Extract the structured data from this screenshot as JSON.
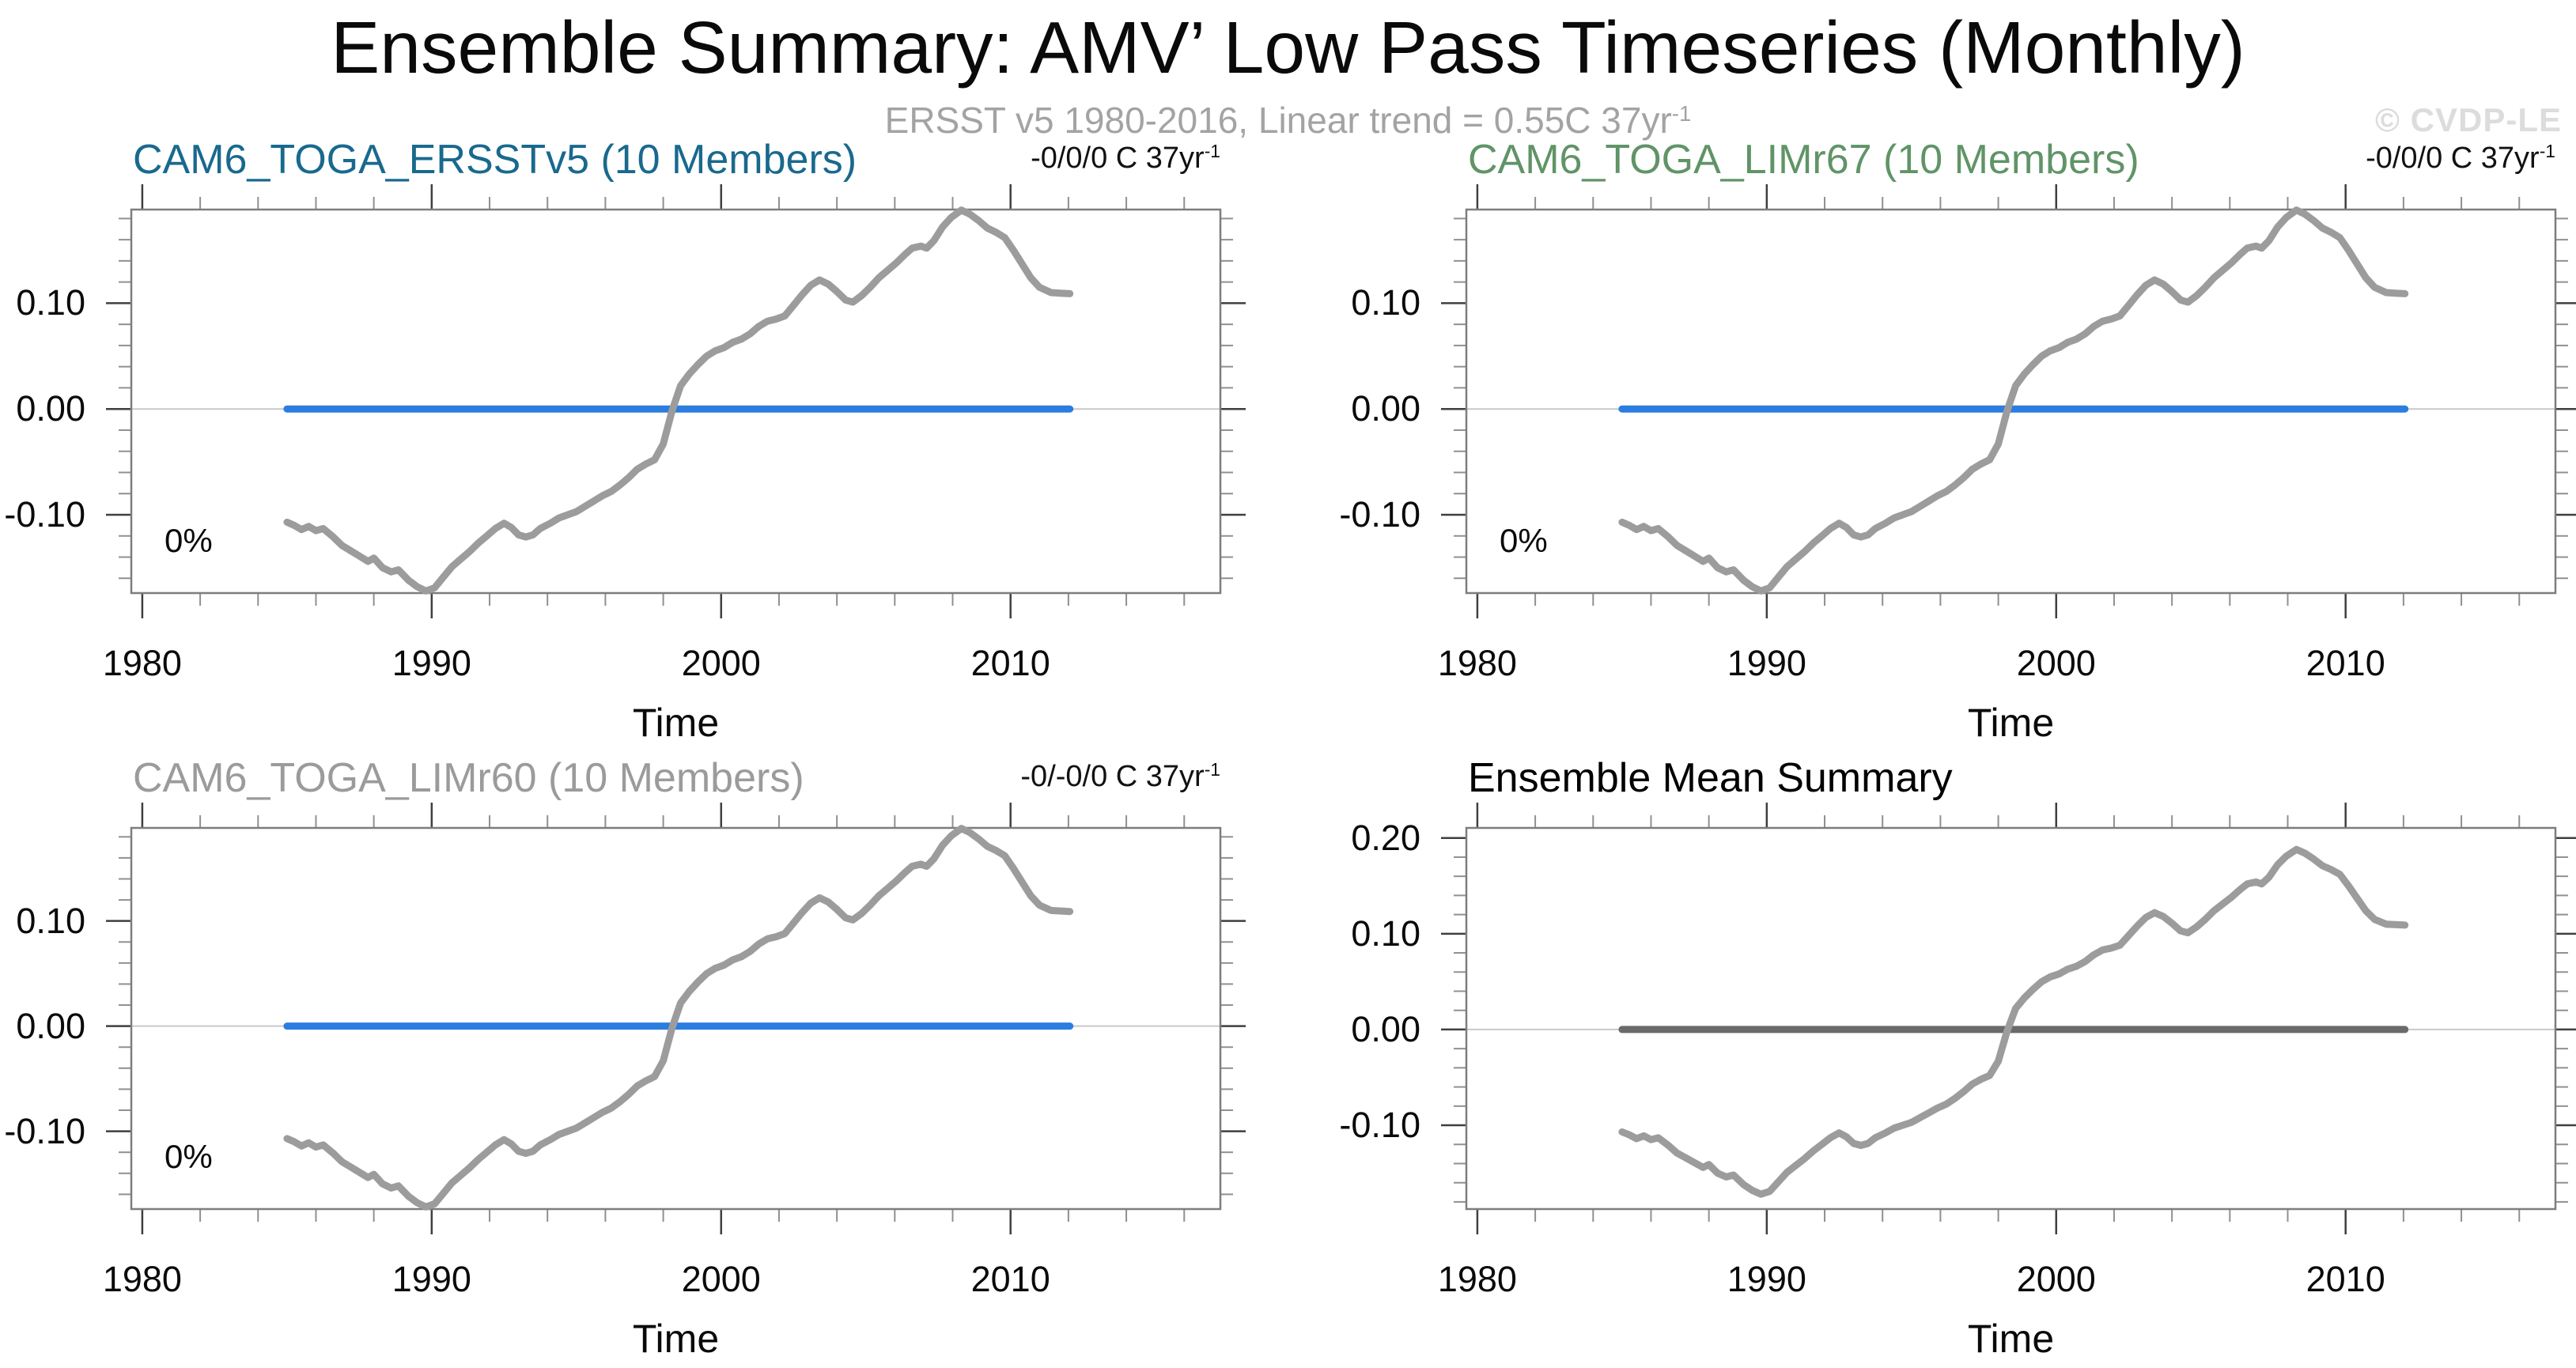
{
  "header": {
    "title": "Ensemble Summary: AMV’ Low Pass Timeseries (Monthly)",
    "subtitle": "ERSST v5 1980-2016, Linear trend = 0.55C 37yr",
    "subtitle_exp": "-1",
    "watermark": "© CVDP-LE"
  },
  "chart_data": {
    "type": "line",
    "grid": "off",
    "x_axis": {
      "label": "Time",
      "range": [
        1979.62,
        2017.25
      ],
      "major_ticks": [
        1980,
        1990,
        2000,
        2010
      ],
      "minor_step_years": 2
    },
    "panels": [
      {
        "title": "CAM6_TOGA_ERSSTv5 (10 Members)",
        "title_color": "#19698e",
        "trend_label": "-0/0/0 C 37yr",
        "trend_exp": "-1",
        "corner_label": "0%",
        "y_tick_labels": [
          "0.10",
          "0.00",
          "-0.10"
        ],
        "y_tick_values": [
          0.1,
          0.0,
          -0.1
        ],
        "y_range": [
          -0.174,
          0.1885
        ],
        "y_minor_step": 0.02,
        "member_line": {
          "color": "#2b7de0",
          "value": 0.0,
          "x_start": 1985.0,
          "x_end": 2012.05
        },
        "series_color": "#9c9c9c"
      },
      {
        "title": "CAM6_TOGA_LIMr67 (10 Members)",
        "title_color": "#609467",
        "trend_label": "-0/0/0 C 37yr",
        "trend_exp": "-1",
        "corner_label": "0%",
        "y_tick_labels": [
          "0.10",
          "0.00",
          "-0.10"
        ],
        "y_tick_values": [
          0.1,
          0.0,
          -0.1
        ],
        "y_range": [
          -0.174,
          0.1885
        ],
        "y_minor_step": 0.02,
        "member_line": {
          "color": "#2b7de0",
          "value": 0.0,
          "x_start": 1985.0,
          "x_end": 2012.05
        },
        "series_color": "#9c9c9c"
      },
      {
        "title": "CAM6_TOGA_LIMr60 (10 Members)",
        "title_color": "#9b9b9b",
        "trend_label": "-0/-0/0 C 37yr",
        "trend_exp": "-1",
        "corner_label": "0%",
        "y_tick_labels": [
          "0.10",
          "0.00",
          "-0.10"
        ],
        "y_tick_values": [
          0.1,
          0.0,
          -0.1
        ],
        "y_range": [
          -0.174,
          0.1885
        ],
        "y_minor_step": 0.02,
        "member_line": {
          "color": "#2b7de0",
          "value": 0.0,
          "x_start": 1985.0,
          "x_end": 2012.05
        },
        "series_color": "#9c9c9c"
      },
      {
        "title": "Ensemble Mean Summary",
        "title_color": "#000000",
        "trend_label": null,
        "trend_exp": null,
        "corner_label": null,
        "y_tick_labels": [
          "0.20",
          "0.10",
          "0.00",
          "-0.10"
        ],
        "y_tick_values": [
          0.2,
          0.1,
          0.0,
          -0.1
        ],
        "y_range": [
          -0.1875,
          0.2105
        ],
        "y_minor_step": 0.02,
        "member_line": {
          "color": "#6a6a6a",
          "value": 0.0,
          "x_start": 1985.0,
          "x_end": 2012.05
        },
        "series_color": "#9c9c9c"
      }
    ],
    "obs_series": {
      "points": [
        [
          1985.0,
          -0.107
        ],
        [
          1985.25,
          -0.11
        ],
        [
          1985.5,
          -0.114
        ],
        [
          1985.75,
          -0.111
        ],
        [
          1986.0,
          -0.115
        ],
        [
          1986.25,
          -0.113
        ],
        [
          1986.6,
          -0.121
        ],
        [
          1986.9,
          -0.129
        ],
        [
          1987.2,
          -0.134
        ],
        [
          1987.5,
          -0.139
        ],
        [
          1987.8,
          -0.144
        ],
        [
          1988.0,
          -0.141
        ],
        [
          1988.3,
          -0.15
        ],
        [
          1988.6,
          -0.154
        ],
        [
          1988.85,
          -0.152
        ],
        [
          1989.2,
          -0.162
        ],
        [
          1989.5,
          -0.168
        ],
        [
          1989.8,
          -0.172
        ],
        [
          1990.1,
          -0.169
        ],
        [
          1990.4,
          -0.159
        ],
        [
          1990.7,
          -0.149
        ],
        [
          1991.0,
          -0.142
        ],
        [
          1991.3,
          -0.135
        ],
        [
          1991.6,
          -0.127
        ],
        [
          1991.9,
          -0.12
        ],
        [
          1992.2,
          -0.113
        ],
        [
          1992.5,
          -0.108
        ],
        [
          1992.75,
          -0.112
        ],
        [
          1993.0,
          -0.119
        ],
        [
          1993.25,
          -0.121
        ],
        [
          1993.5,
          -0.119
        ],
        [
          1993.75,
          -0.113
        ],
        [
          1994.1,
          -0.108
        ],
        [
          1994.4,
          -0.103
        ],
        [
          1994.7,
          -0.1
        ],
        [
          1995.0,
          -0.097
        ],
        [
          1995.3,
          -0.092
        ],
        [
          1995.6,
          -0.087
        ],
        [
          1995.9,
          -0.082
        ],
        [
          1996.2,
          -0.078
        ],
        [
          1996.5,
          -0.072
        ],
        [
          1996.8,
          -0.065
        ],
        [
          1997.1,
          -0.057
        ],
        [
          1997.4,
          -0.052
        ],
        [
          1997.7,
          -0.048
        ],
        [
          1998.0,
          -0.033
        ],
        [
          1998.3,
          -0.002
        ],
        [
          1998.6,
          0.022
        ],
        [
          1998.9,
          0.033
        ],
        [
          1999.2,
          0.042
        ],
        [
          1999.5,
          0.05
        ],
        [
          1999.8,
          0.055
        ],
        [
          2000.1,
          0.058
        ],
        [
          2000.4,
          0.063
        ],
        [
          2000.7,
          0.066
        ],
        [
          2001.0,
          0.071
        ],
        [
          2001.3,
          0.078
        ],
        [
          2001.6,
          0.083
        ],
        [
          2001.9,
          0.085
        ],
        [
          2002.2,
          0.088
        ],
        [
          2002.5,
          0.098
        ],
        [
          2002.8,
          0.108
        ],
        [
          2003.1,
          0.117
        ],
        [
          2003.4,
          0.122
        ],
        [
          2003.7,
          0.118
        ],
        [
          2004.0,
          0.111
        ],
        [
          2004.3,
          0.103
        ],
        [
          2004.55,
          0.101
        ],
        [
          2004.85,
          0.107
        ],
        [
          2005.15,
          0.115
        ],
        [
          2005.45,
          0.124
        ],
        [
          2005.75,
          0.131
        ],
        [
          2006.05,
          0.138
        ],
        [
          2006.35,
          0.146
        ],
        [
          2006.6,
          0.152
        ],
        [
          2006.9,
          0.154
        ],
        [
          2007.1,
          0.152
        ],
        [
          2007.35,
          0.159
        ],
        [
          2007.65,
          0.172
        ],
        [
          2007.95,
          0.181
        ],
        [
          2008.3,
          0.188
        ],
        [
          2008.6,
          0.184
        ],
        [
          2008.9,
          0.178
        ],
        [
          2009.2,
          0.171
        ],
        [
          2009.5,
          0.167
        ],
        [
          2009.8,
          0.162
        ],
        [
          2010.1,
          0.15
        ],
        [
          2010.4,
          0.137
        ],
        [
          2010.7,
          0.124
        ],
        [
          2011.0,
          0.115
        ],
        [
          2011.4,
          0.11
        ],
        [
          2011.7,
          0.1095
        ],
        [
          2012.05,
          0.109
        ]
      ]
    }
  }
}
